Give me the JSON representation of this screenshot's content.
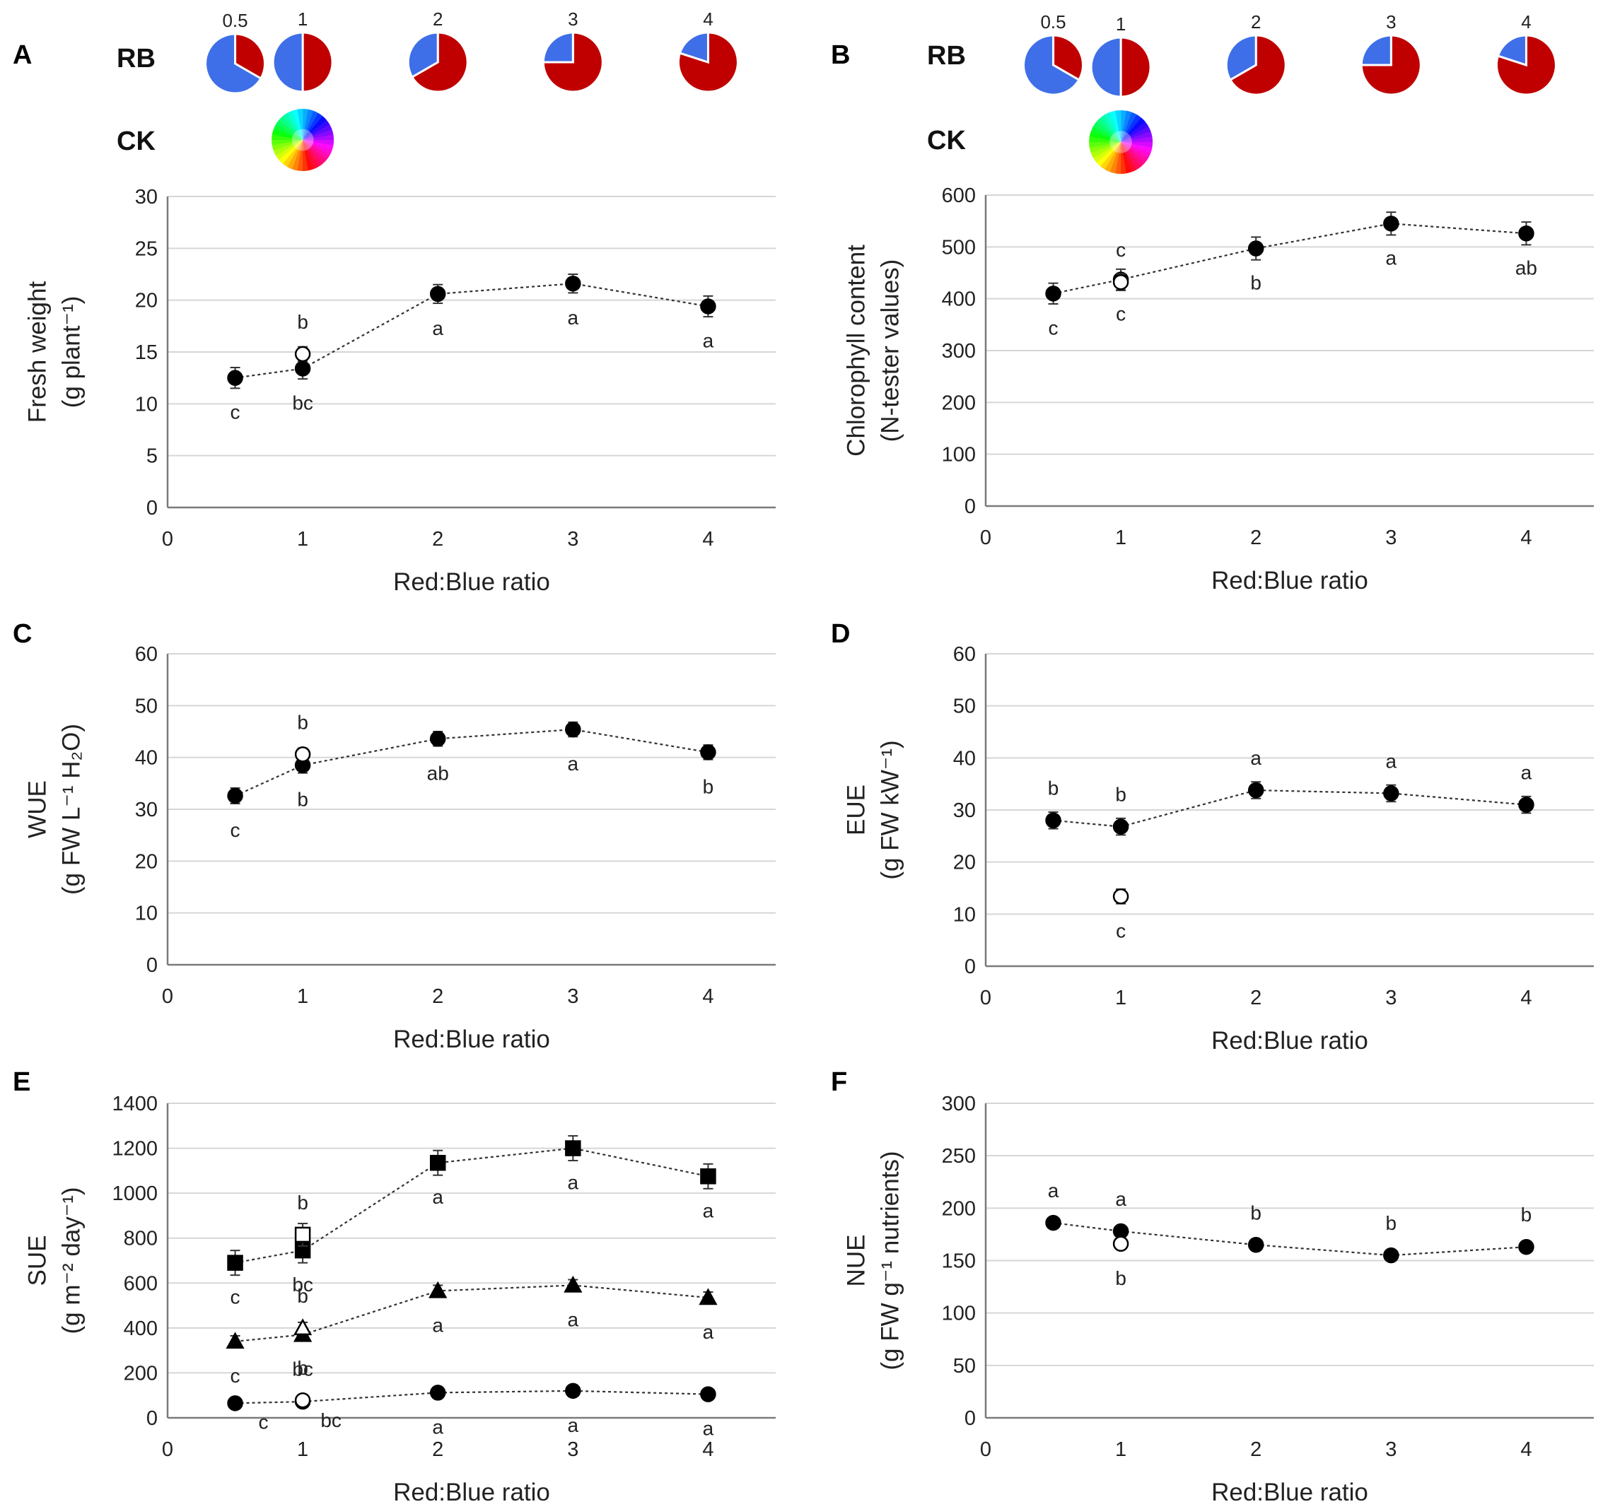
{
  "colors": {
    "blue": "#3f6fe8",
    "red": "#c00000",
    "marker": "#000000",
    "grid": "#d6d6d6",
    "axis": "#7a7a7a"
  },
  "legend": {
    "rb_label": "RB",
    "ck_label": "CK",
    "pie_ratio_labels": [
      "0.5",
      "1",
      "2",
      "3",
      "4"
    ],
    "pie_ratios": [
      0.5,
      1,
      2,
      3,
      4
    ]
  },
  "chart_data": [
    {
      "panel": "A",
      "type": "scatter",
      "ylabel_lines": [
        "Fresh weight",
        "(g plant⁻¹)"
      ],
      "xlabel": "Red:Blue ratio",
      "xlim": [
        0,
        4.5
      ],
      "ylim": [
        0,
        30
      ],
      "ystep": 5,
      "xticks": [
        0,
        1,
        2,
        3,
        4
      ],
      "series": [
        {
          "name": "RB",
          "marker": "circle",
          "filled": true,
          "connect": true,
          "x": [
            0.5,
            1,
            2,
            3,
            4
          ],
          "y": [
            12.5,
            13.4,
            20.6,
            21.6,
            19.4
          ],
          "err": [
            1.0,
            1.0,
            0.9,
            0.9,
            1.0
          ],
          "labels": [
            "c",
            "bc",
            "a",
            "a",
            "a"
          ],
          "label_pos": [
            "below",
            "below",
            "below",
            "below",
            "below"
          ]
        },
        {
          "name": "CK",
          "marker": "circle",
          "filled": false,
          "connect": false,
          "x": [
            1
          ],
          "y": [
            14.8
          ],
          "err": [
            0.7
          ],
          "labels": [
            "b"
          ],
          "label_pos": [
            "above"
          ]
        }
      ]
    },
    {
      "panel": "B",
      "type": "scatter",
      "ylabel_lines": [
        "Chlorophyll content",
        "(N-tester values)"
      ],
      "xlabel": "Red:Blue ratio",
      "xlim": [
        0,
        4.5
      ],
      "ylim": [
        0,
        600
      ],
      "ystep": 100,
      "xticks": [
        0,
        1,
        2,
        3,
        4
      ],
      "series": [
        {
          "name": "RB",
          "marker": "circle",
          "filled": true,
          "connect": true,
          "x": [
            0.5,
            1,
            2,
            3,
            4
          ],
          "y": [
            410,
            437,
            497,
            545,
            526
          ],
          "err": [
            20,
            20,
            22,
            22,
            22
          ],
          "labels": [
            "c",
            "c",
            "b",
            "a",
            "ab"
          ],
          "label_pos": [
            "below",
            "below",
            "below",
            "below",
            "below"
          ]
        },
        {
          "name": "CK",
          "marker": "circle",
          "filled": false,
          "connect": false,
          "x": [
            1
          ],
          "y": [
            432
          ],
          "err": [
            16
          ],
          "labels": [
            "c"
          ],
          "label_pos": [
            "above"
          ]
        }
      ]
    },
    {
      "panel": "C",
      "type": "scatter",
      "ylabel_lines": [
        "WUE",
        "(g FW L⁻¹ H₂O)"
      ],
      "xlabel": "Red:Blue ratio",
      "xlim": [
        0,
        4.5
      ],
      "ylim": [
        0,
        60
      ],
      "ystep": 10,
      "xticks": [
        0,
        1,
        2,
        3,
        4
      ],
      "series": [
        {
          "name": "RB",
          "marker": "circle",
          "filled": true,
          "connect": true,
          "x": [
            0.5,
            1,
            2,
            3,
            4
          ],
          "y": [
            32.6,
            38.5,
            43.6,
            45.4,
            41.0
          ],
          "err": [
            1.5,
            1.5,
            1.4,
            1.4,
            1.4
          ],
          "labels": [
            "c",
            "b",
            "ab",
            "a",
            "b"
          ],
          "label_pos": [
            "below",
            "below",
            "below",
            "below",
            "below"
          ]
        },
        {
          "name": "CK",
          "marker": "circle",
          "filled": false,
          "connect": false,
          "x": [
            1
          ],
          "y": [
            40.6
          ],
          "err": [
            1.2
          ],
          "labels": [
            "b"
          ],
          "label_pos": [
            "above"
          ]
        }
      ]
    },
    {
      "panel": "D",
      "type": "scatter",
      "ylabel_lines": [
        "EUE",
        "(g FW kW⁻¹)"
      ],
      "xlabel": "Red:Blue ratio",
      "xlim": [
        0,
        4.5
      ],
      "ylim": [
        0,
        60
      ],
      "ystep": 10,
      "xticks": [
        0,
        1,
        2,
        3,
        4
      ],
      "series": [
        {
          "name": "RB",
          "marker": "circle",
          "filled": true,
          "connect": true,
          "x": [
            0.5,
            1,
            2,
            3,
            4
          ],
          "y": [
            28.0,
            26.8,
            33.8,
            33.2,
            31.0
          ],
          "err": [
            1.6,
            1.6,
            1.6,
            1.6,
            1.6
          ],
          "labels": [
            "b",
            "b",
            "a",
            "a",
            "a"
          ],
          "label_pos": [
            "above",
            "above",
            "above",
            "above",
            "above"
          ]
        },
        {
          "name": "CK",
          "marker": "circle",
          "filled": false,
          "connect": false,
          "x": [
            1
          ],
          "y": [
            13.4
          ],
          "err": [
            1.4
          ],
          "labels": [
            "c"
          ],
          "label_pos": [
            "below"
          ]
        }
      ]
    },
    {
      "panel": "E",
      "type": "scatter",
      "ylabel_lines": [
        "SUE",
        "(g m⁻² day⁻¹)"
      ],
      "xlabel": "Red:Blue ratio",
      "xlim": [
        0,
        4.5
      ],
      "ylim": [
        0,
        1400
      ],
      "ystep": 200,
      "xticks": [
        0,
        1,
        2,
        3,
        4
      ],
      "series": [
        {
          "name": "RB-square",
          "marker": "square",
          "filled": true,
          "connect": true,
          "x": [
            0.5,
            1,
            2,
            3,
            4
          ],
          "y": [
            690,
            745,
            1135,
            1200,
            1075
          ],
          "err": [
            55,
            55,
            55,
            55,
            55
          ],
          "labels": [
            "c",
            "bc",
            "a",
            "a",
            "a"
          ],
          "label_pos": [
            "below",
            "below",
            "below",
            "below",
            "below"
          ]
        },
        {
          "name": "CK-square",
          "marker": "square",
          "filled": false,
          "connect": false,
          "x": [
            1
          ],
          "y": [
            815
          ],
          "err": [
            50
          ],
          "labels": [
            "b"
          ],
          "label_pos": [
            "above"
          ]
        },
        {
          "name": "RB-triangle",
          "marker": "triangle",
          "filled": true,
          "connect": true,
          "x": [
            0.5,
            1,
            2,
            3,
            4
          ],
          "y": [
            340,
            370,
            565,
            590,
            535
          ],
          "err": [
            25,
            25,
            25,
            25,
            25
          ],
          "labels": [
            "c",
            "bc",
            "a",
            "a",
            "a"
          ],
          "label_pos": [
            "below",
            "below",
            "below",
            "below",
            "below"
          ]
        },
        {
          "name": "CK-triangle",
          "marker": "triangle",
          "filled": false,
          "connect": false,
          "x": [
            1
          ],
          "y": [
            400
          ],
          "err": [
            25
          ],
          "labels": [
            "b"
          ],
          "label_pos": [
            "above"
          ]
        },
        {
          "name": "RB-circle",
          "marker": "circle",
          "filled": true,
          "connect": true,
          "x": [
            0.5,
            1,
            2,
            3,
            4
          ],
          "y": [
            65,
            72,
            112,
            120,
            105
          ],
          "err": [
            8,
            8,
            8,
            8,
            8
          ],
          "labels": [
            "c",
            "bc",
            "a",
            "a",
            "a"
          ],
          "label_pos": [
            "belowright",
            "belowright",
            "below",
            "below",
            "below"
          ]
        },
        {
          "name": "CK-circle",
          "marker": "circle",
          "filled": false,
          "connect": false,
          "x": [
            1
          ],
          "y": [
            78
          ],
          "err": [
            6
          ],
          "labels": [
            "b"
          ],
          "label_pos": [
            "above"
          ]
        }
      ]
    },
    {
      "panel": "F",
      "type": "scatter",
      "ylabel_lines": [
        "NUE",
        "(g FW g⁻¹ nutrients)"
      ],
      "xlabel": "Red:Blue ratio",
      "xlim": [
        0,
        4.5
      ],
      "ylim": [
        0,
        300
      ],
      "ystep": 50,
      "xticks": [
        0,
        1,
        2,
        3,
        4
      ],
      "series": [
        {
          "name": "RB",
          "marker": "circle",
          "filled": true,
          "connect": true,
          "x": [
            0.5,
            1,
            2,
            3,
            4
          ],
          "y": [
            186,
            178,
            165,
            155,
            163
          ],
          "err": [
            3,
            3,
            3,
            3,
            3
          ],
          "labels": [
            "a",
            "a",
            "b",
            "b",
            "b"
          ],
          "label_pos": [
            "above",
            "above",
            "above",
            "above",
            "above"
          ]
        },
        {
          "name": "CK",
          "marker": "circle",
          "filled": false,
          "connect": false,
          "x": [
            1
          ],
          "y": [
            166
          ],
          "err": [
            3
          ],
          "labels": [
            "b"
          ],
          "label_pos": [
            "below"
          ]
        }
      ]
    }
  ]
}
